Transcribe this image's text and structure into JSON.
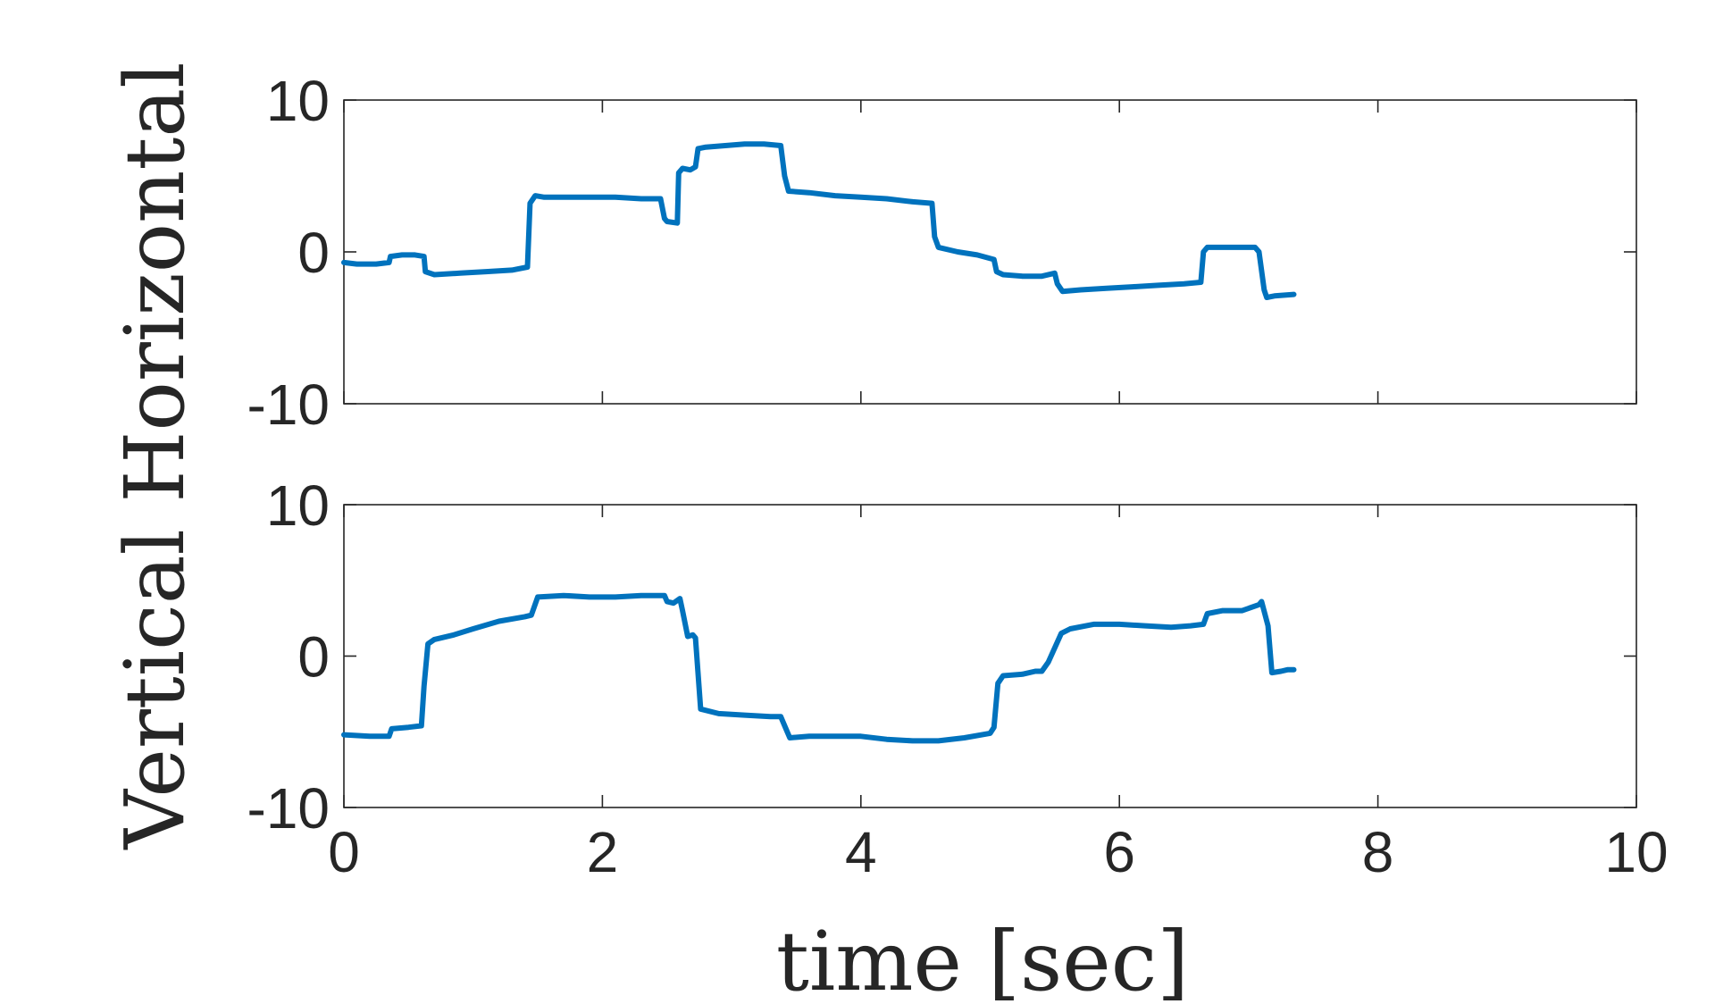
{
  "colors": {
    "line": "#0072BD",
    "axes": "#262626",
    "background": "#ffffff"
  },
  "chart_data": [
    {
      "type": "line",
      "subplot": "top",
      "xlabel": "",
      "ylabel": "Horizontal",
      "xlim": [
        0,
        10
      ],
      "ylim": [
        -10,
        10
      ],
      "xticks": [
        0,
        2,
        4,
        6,
        8,
        10
      ],
      "yticks": [
        -10,
        0,
        10
      ],
      "ytick_labels": [
        "-10",
        "0",
        "10"
      ],
      "xtick_labels_visible": false,
      "grid": false,
      "series": [
        {
          "x": [
            0,
            0.1,
            0.25,
            0.35,
            0.36,
            0.45,
            0.55,
            0.62,
            0.63,
            0.7,
            0.9,
            1.1,
            1.3,
            1.42,
            1.44,
            1.48,
            1.55,
            1.8,
            2.1,
            2.3,
            2.45,
            2.48,
            2.5,
            2.58,
            2.59,
            2.62,
            2.68,
            2.72,
            2.74,
            2.8,
            2.95,
            3.1,
            3.25,
            3.38,
            3.41,
            3.44,
            3.6,
            3.8,
            4.0,
            4.2,
            4.4,
            4.55,
            4.57,
            4.6,
            4.75,
            4.9,
            5.03,
            5.05,
            5.1,
            5.25,
            5.4,
            5.5,
            5.52,
            5.56,
            5.7,
            5.9,
            6.1,
            6.3,
            6.5,
            6.63,
            6.65,
            6.68,
            6.85,
            7.05,
            7.08,
            7.12,
            7.14,
            7.2,
            7.35
          ],
          "y": [
            -0.7,
            -0.8,
            -0.8,
            -0.7,
            -0.3,
            -0.2,
            -0.2,
            -0.3,
            -1.3,
            -1.5,
            -1.4,
            -1.3,
            -1.2,
            -1.0,
            3.2,
            3.7,
            3.6,
            3.6,
            3.6,
            3.5,
            3.5,
            2.2,
            2.0,
            1.9,
            5.2,
            5.5,
            5.4,
            5.6,
            6.8,
            6.9,
            7.0,
            7.1,
            7.1,
            7.0,
            5.0,
            4.0,
            3.9,
            3.7,
            3.6,
            3.5,
            3.3,
            3.2,
            1.0,
            0.3,
            0.0,
            -0.2,
            -0.5,
            -1.3,
            -1.5,
            -1.6,
            -1.6,
            -1.4,
            -2.1,
            -2.6,
            -2.5,
            -2.4,
            -2.3,
            -2.2,
            -2.1,
            -2.0,
            0.0,
            0.3,
            0.3,
            0.3,
            0.0,
            -2.5,
            -3.0,
            -2.9,
            -2.8
          ]
        }
      ]
    },
    {
      "type": "line",
      "subplot": "bottom",
      "xlabel": "time [sec]",
      "ylabel": "Vertical",
      "xlim": [
        0,
        10
      ],
      "ylim": [
        -10,
        10
      ],
      "xticks": [
        0,
        2,
        4,
        6,
        8,
        10
      ],
      "xtick_labels": [
        "0",
        "2",
        "4",
        "6",
        "8",
        "10"
      ],
      "yticks": [
        -10,
        0,
        10
      ],
      "ytick_labels": [
        "-10",
        "0",
        "10"
      ],
      "grid": false,
      "series": [
        {
          "x": [
            0,
            0.2,
            0.35,
            0.37,
            0.5,
            0.6,
            0.62,
            0.65,
            0.7,
            0.85,
            1.0,
            1.2,
            1.4,
            1.45,
            1.5,
            1.7,
            1.9,
            2.1,
            2.3,
            2.48,
            2.5,
            2.55,
            2.6,
            2.62,
            2.66,
            2.7,
            2.72,
            2.76,
            2.9,
            3.1,
            3.3,
            3.38,
            3.42,
            3.45,
            3.6,
            3.8,
            4.0,
            4.2,
            4.4,
            4.6,
            4.8,
            5.0,
            5.03,
            5.06,
            5.1,
            5.25,
            5.35,
            5.4,
            5.45,
            5.55,
            5.62,
            5.8,
            6.0,
            6.2,
            6.4,
            6.55,
            6.65,
            6.68,
            6.8,
            6.95,
            7.08,
            7.1,
            7.15,
            7.18,
            7.25,
            7.3,
            7.35
          ],
          "y": [
            -5.2,
            -5.3,
            -5.3,
            -4.8,
            -4.7,
            -4.6,
            -2.0,
            0.8,
            1.1,
            1.4,
            1.8,
            2.3,
            2.6,
            2.7,
            3.9,
            4.0,
            3.9,
            3.9,
            4.0,
            4.0,
            3.6,
            3.5,
            3.8,
            3.0,
            1.3,
            1.4,
            1.2,
            -3.5,
            -3.8,
            -3.9,
            -4.0,
            -4.0,
            -4.8,
            -5.4,
            -5.3,
            -5.3,
            -5.3,
            -5.5,
            -5.6,
            -5.6,
            -5.4,
            -5.1,
            -4.7,
            -1.8,
            -1.3,
            -1.2,
            -1.0,
            -1.0,
            -0.4,
            1.5,
            1.8,
            2.1,
            2.1,
            2.0,
            1.9,
            2.0,
            2.1,
            2.8,
            3.0,
            3.0,
            3.4,
            3.6,
            2.0,
            -1.1,
            -1.0,
            -0.9,
            -0.9
          ]
        }
      ]
    }
  ]
}
